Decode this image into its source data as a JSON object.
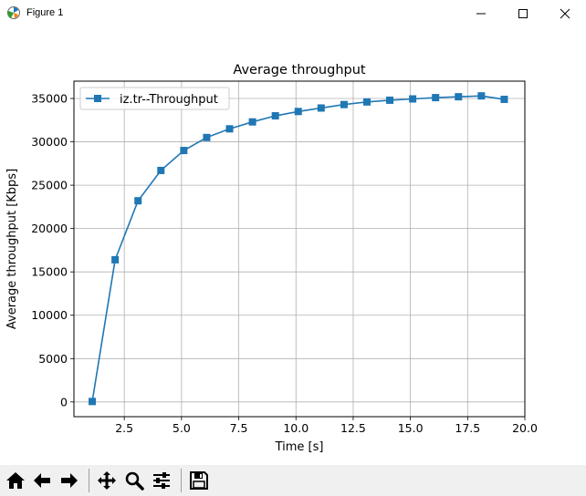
{
  "window": {
    "title": "Figure 1",
    "icons": [
      "matplotlib-icon",
      "minimize-icon",
      "maximize-icon",
      "close-icon"
    ]
  },
  "chart_data": {
    "type": "line",
    "title": "Average throughput",
    "xlabel": "Time [s]",
    "ylabel": "Average throughput [Kbps]",
    "xlim": [
      0.3,
      20.0
    ],
    "ylim": [
      -1700,
      37000
    ],
    "xticks": [
      2.5,
      5.0,
      7.5,
      10.0,
      12.5,
      15.0,
      17.5,
      20.0
    ],
    "xtick_labels": [
      "2.5",
      "5.0",
      "7.5",
      "10.0",
      "12.5",
      "15.0",
      "17.5",
      "20.0"
    ],
    "yticks": [
      0,
      5000,
      10000,
      15000,
      20000,
      25000,
      30000,
      35000
    ],
    "ytick_labels": [
      "0",
      "5000",
      "10000",
      "15000",
      "20000",
      "25000",
      "30000",
      "35000"
    ],
    "grid": true,
    "legend_position": "upper-left",
    "series": [
      {
        "name": "iz.tr--Throughput",
        "color": "#1f77b4",
        "marker": "square",
        "x": [
          1.1,
          2.1,
          3.1,
          4.1,
          5.1,
          6.1,
          7.1,
          8.1,
          9.1,
          10.1,
          11.1,
          12.1,
          13.1,
          14.1,
          15.1,
          16.1,
          17.1,
          18.1,
          19.1
        ],
        "y": [
          50,
          16400,
          23200,
          26700,
          29000,
          30500,
          31500,
          32300,
          33000,
          33500,
          33900,
          34300,
          34600,
          34800,
          34950,
          35100,
          35200,
          35300,
          34900
        ]
      }
    ]
  },
  "toolbar": {
    "icons": [
      "home-icon",
      "back-arrow-icon",
      "forward-arrow-icon",
      "pan-icon",
      "zoom-icon",
      "configure-subplots-icon",
      "save-icon"
    ]
  }
}
